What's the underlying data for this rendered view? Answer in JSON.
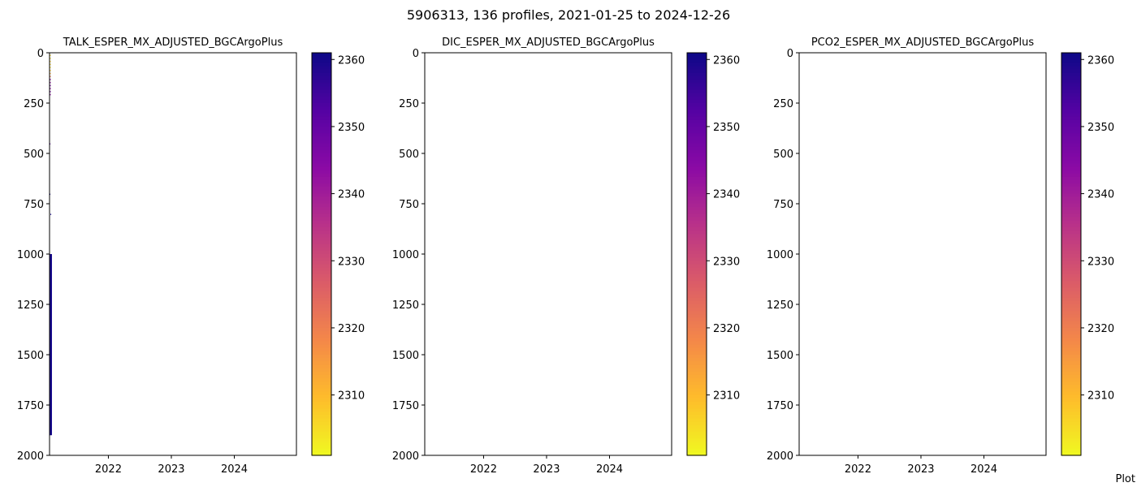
{
  "figure": {
    "title": "5906313, 136 profiles, 2021-01-25 to 2024-12-26",
    "corner_note": "Plot"
  },
  "chart_data": [
    {
      "type": "heatmap",
      "title": "TALK_ESPER_MX_ADJUSTED_BGCArgoPlus",
      "xlabel": "",
      "ylabel": "",
      "xlim": [
        "2021-01-25",
        "2024-12-26"
      ],
      "ylim": [
        2000,
        0
      ],
      "y_inverted": true,
      "xticks": [
        {
          "value": "2022-01-01",
          "label": "2022"
        },
        {
          "value": "2023-01-01",
          "label": "2023"
        },
        {
          "value": "2024-01-01",
          "label": "2024"
        }
      ],
      "yticks": [
        0,
        250,
        500,
        750,
        1000,
        1250,
        1500,
        1750,
        2000
      ],
      "colorbar": {
        "cmap": "plasma_r",
        "vmin": 2301,
        "vmax": 2361,
        "ticks": [
          2310,
          2320,
          2330,
          2340,
          2350,
          2360
        ]
      },
      "grid": false,
      "cells": [
        {
          "x0": "2021-01-27",
          "x1": "2021-02-01",
          "y0": 10,
          "y1": 16,
          "value": 2306
        },
        {
          "x0": "2021-01-27",
          "x1": "2021-02-01",
          "y0": 25,
          "y1": 31,
          "value": 2305
        },
        {
          "x0": "2021-01-27",
          "x1": "2021-02-01",
          "y0": 40,
          "y1": 46,
          "value": 2307
        },
        {
          "x0": "2021-01-27",
          "x1": "2021-02-01",
          "y0": 55,
          "y1": 61,
          "value": 2306
        },
        {
          "x0": "2021-01-27",
          "x1": "2021-02-01",
          "y0": 70,
          "y1": 76,
          "value": 2305
        },
        {
          "x0": "2021-01-27",
          "x1": "2021-02-01",
          "y0": 85,
          "y1": 91,
          "value": 2308
        },
        {
          "x0": "2021-01-27",
          "x1": "2021-02-01",
          "y0": 100,
          "y1": 106,
          "value": 2312
        },
        {
          "x0": "2021-01-27",
          "x1": "2021-02-01",
          "y0": 115,
          "y1": 121,
          "value": 2320
        },
        {
          "x0": "2021-01-27",
          "x1": "2021-02-01",
          "y0": 130,
          "y1": 136,
          "value": 2345
        },
        {
          "x0": "2021-01-27",
          "x1": "2021-02-01",
          "y0": 145,
          "y1": 151,
          "value": 2342
        },
        {
          "x0": "2021-01-27",
          "x1": "2021-02-01",
          "y0": 160,
          "y1": 166,
          "value": 2346
        },
        {
          "x0": "2021-01-27",
          "x1": "2021-02-01",
          "y0": 175,
          "y1": 181,
          "value": 2344
        },
        {
          "x0": "2021-01-27",
          "x1": "2021-02-01",
          "y0": 190,
          "y1": 196,
          "value": 2347
        },
        {
          "x0": "2021-01-27",
          "x1": "2021-02-01",
          "y0": 205,
          "y1": 211,
          "value": 2343
        },
        {
          "x0": "2021-01-25",
          "x1": "2021-01-30",
          "y0": 450,
          "y1": 456,
          "value": 2352
        },
        {
          "x0": "2021-01-25",
          "x1": "2021-01-29",
          "y0": 700,
          "y1": 706,
          "value": 2360
        },
        {
          "x0": "2021-01-30",
          "x1": "2021-02-03",
          "y0": 800,
          "y1": 806,
          "value": 2360
        },
        {
          "x0": "2021-01-25",
          "x1": "2021-02-08",
          "y0": 1000,
          "y1": 1900,
          "value": 2360
        },
        {
          "x0": "2021-01-25",
          "x1": "2021-01-29",
          "y0": 1790,
          "y1": 1900,
          "value": 2360
        }
      ]
    },
    {
      "type": "heatmap",
      "title": "DIC_ESPER_MX_ADJUSTED_BGCArgoPlus",
      "xlabel": "",
      "ylabel": "",
      "xlim": [
        "2021-01-25",
        "2024-12-26"
      ],
      "ylim": [
        2000,
        0
      ],
      "y_inverted": true,
      "xticks": [
        {
          "value": "2022-01-01",
          "label": "2022"
        },
        {
          "value": "2023-01-01",
          "label": "2023"
        },
        {
          "value": "2024-01-01",
          "label": "2024"
        }
      ],
      "yticks": [
        0,
        250,
        500,
        750,
        1000,
        1250,
        1500,
        1750,
        2000
      ],
      "colorbar": {
        "cmap": "plasma_r",
        "vmin": 2301,
        "vmax": 2361,
        "ticks": [
          2310,
          2320,
          2330,
          2340,
          2350,
          2360
        ]
      },
      "grid": false,
      "cells": []
    },
    {
      "type": "heatmap",
      "title": "PCO2_ESPER_MX_ADJUSTED_BGCArgoPlus",
      "xlabel": "",
      "ylabel": "",
      "xlim": [
        "2021-01-25",
        "2024-12-26"
      ],
      "ylim": [
        2000,
        0
      ],
      "y_inverted": true,
      "xticks": [
        {
          "value": "2022-01-01",
          "label": "2022"
        },
        {
          "value": "2023-01-01",
          "label": "2023"
        },
        {
          "value": "2024-01-01",
          "label": "2024"
        }
      ],
      "yticks": [
        0,
        250,
        500,
        750,
        1000,
        1250,
        1500,
        1750,
        2000
      ],
      "colorbar": {
        "cmap": "plasma_r",
        "vmin": 2301,
        "vmax": 2361,
        "ticks": [
          2310,
          2320,
          2330,
          2340,
          2350,
          2360
        ]
      },
      "grid": false,
      "cells": []
    }
  ]
}
